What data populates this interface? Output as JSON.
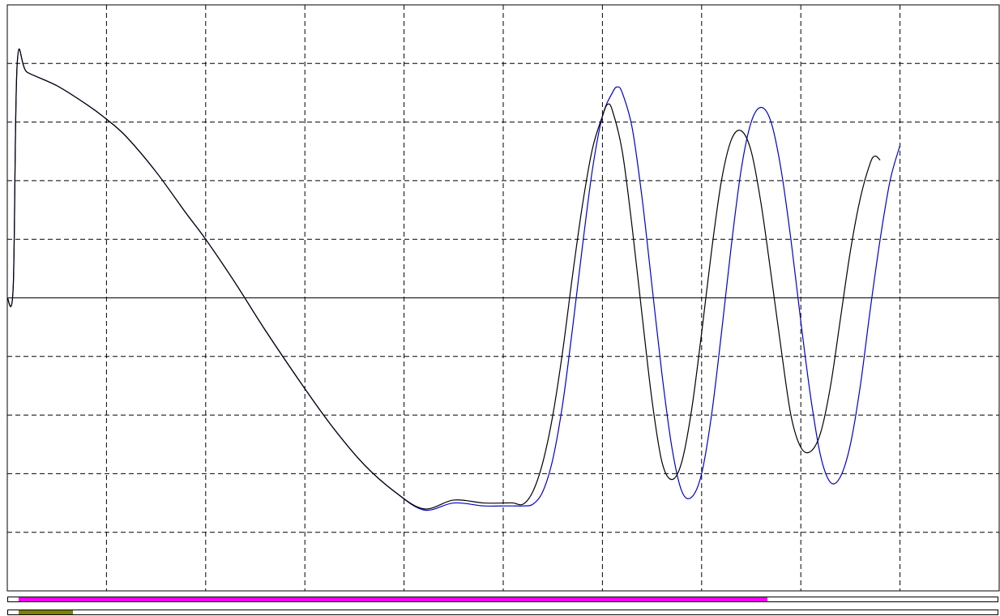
{
  "chart_data": {
    "type": "line",
    "grid": true,
    "grid_style": "dashed",
    "xlim": [
      0,
      10
    ],
    "ylim": [
      -5,
      5
    ],
    "zero_line": true,
    "x_divisions": 10,
    "y_divisions": 10,
    "series": [
      {
        "color": "#000000",
        "points": [
          [
            0,
            0
          ],
          [
            0.06,
            0.2
          ],
          [
            0.1,
            4.0
          ],
          [
            0.2,
            3.85
          ],
          [
            0.5,
            3.62
          ],
          [
            0.8,
            3.3
          ],
          [
            1.0,
            3.05
          ],
          [
            1.2,
            2.75
          ],
          [
            1.5,
            2.15
          ],
          [
            1.8,
            1.45
          ],
          [
            2.0,
            1.0
          ],
          [
            2.3,
            0.25
          ],
          [
            2.6,
            -0.55
          ],
          [
            3.0,
            -1.55
          ],
          [
            3.3,
            -2.25
          ],
          [
            3.6,
            -2.85
          ],
          [
            3.9,
            -3.3
          ],
          [
            4.2,
            -3.6
          ],
          [
            4.5,
            -3.45
          ],
          [
            4.8,
            -3.5
          ],
          [
            5.0,
            -3.5
          ],
          [
            5.1,
            -3.5
          ],
          [
            5.2,
            -3.52
          ],
          [
            5.3,
            -3.3
          ],
          [
            5.4,
            -2.8
          ],
          [
            5.5,
            -2.0
          ],
          [
            5.6,
            -0.9
          ],
          [
            5.7,
            0.4
          ],
          [
            5.8,
            1.6
          ],
          [
            5.9,
            2.55
          ],
          [
            6.0,
            3.1
          ],
          [
            6.05,
            3.3
          ],
          [
            6.1,
            3.2
          ],
          [
            6.2,
            2.5
          ],
          [
            6.3,
            1.2
          ],
          [
            6.4,
            -0.3
          ],
          [
            6.5,
            -1.75
          ],
          [
            6.6,
            -2.8
          ],
          [
            6.7,
            -3.1
          ],
          [
            6.8,
            -2.8
          ],
          [
            6.9,
            -1.9
          ],
          [
            7.0,
            -0.6
          ],
          [
            7.1,
            0.8
          ],
          [
            7.2,
            2.0
          ],
          [
            7.3,
            2.7
          ],
          [
            7.4,
            2.85
          ],
          [
            7.5,
            2.5
          ],
          [
            7.6,
            1.6
          ],
          [
            7.7,
            0.4
          ],
          [
            7.8,
            -0.85
          ],
          [
            7.9,
            -2.0
          ],
          [
            8.0,
            -2.55
          ],
          [
            8.1,
            -2.62
          ],
          [
            8.2,
            -2.3
          ],
          [
            8.3,
            -1.5
          ],
          [
            8.4,
            -0.35
          ],
          [
            8.5,
            0.8
          ],
          [
            8.6,
            1.7
          ],
          [
            8.7,
            2.3
          ],
          [
            8.75,
            2.42
          ],
          [
            8.8,
            2.35
          ]
        ]
      },
      {
        "color": "#0000cc",
        "points": [
          [
            0,
            0
          ],
          [
            0.06,
            0.2
          ],
          [
            0.1,
            4.0
          ],
          [
            0.2,
            3.85
          ],
          [
            0.5,
            3.62
          ],
          [
            0.8,
            3.3
          ],
          [
            1.0,
            3.05
          ],
          [
            1.2,
            2.75
          ],
          [
            1.5,
            2.15
          ],
          [
            1.8,
            1.45
          ],
          [
            2.0,
            1.0
          ],
          [
            2.3,
            0.25
          ],
          [
            2.6,
            -0.55
          ],
          [
            3.0,
            -1.55
          ],
          [
            3.3,
            -2.25
          ],
          [
            3.6,
            -2.85
          ],
          [
            3.9,
            -3.3
          ],
          [
            4.2,
            -3.62
          ],
          [
            4.5,
            -3.5
          ],
          [
            4.8,
            -3.55
          ],
          [
            5.0,
            -3.55
          ],
          [
            5.1,
            -3.55
          ],
          [
            5.2,
            -3.55
          ],
          [
            5.3,
            -3.52
          ],
          [
            5.4,
            -3.3
          ],
          [
            5.5,
            -2.75
          ],
          [
            5.6,
            -1.8
          ],
          [
            5.7,
            -0.5
          ],
          [
            5.8,
            0.9
          ],
          [
            5.9,
            2.2
          ],
          [
            6.0,
            3.1
          ],
          [
            6.1,
            3.5
          ],
          [
            6.15,
            3.6
          ],
          [
            6.2,
            3.5
          ],
          [
            6.3,
            2.9
          ],
          [
            6.4,
            1.7
          ],
          [
            6.5,
            0.2
          ],
          [
            6.6,
            -1.3
          ],
          [
            6.7,
            -2.55
          ],
          [
            6.8,
            -3.3
          ],
          [
            6.9,
            -3.4
          ],
          [
            7.0,
            -3.0
          ],
          [
            7.1,
            -2.0
          ],
          [
            7.2,
            -0.6
          ],
          [
            7.3,
            0.9
          ],
          [
            7.4,
            2.2
          ],
          [
            7.5,
            3.0
          ],
          [
            7.6,
            3.25
          ],
          [
            7.7,
            3.0
          ],
          [
            7.8,
            2.2
          ],
          [
            7.9,
            1.0
          ],
          [
            8.0,
            -0.4
          ],
          [
            8.1,
            -1.7
          ],
          [
            8.2,
            -2.7
          ],
          [
            8.3,
            -3.15
          ],
          [
            8.4,
            -3.05
          ],
          [
            8.5,
            -2.5
          ],
          [
            8.6,
            -1.5
          ],
          [
            8.7,
            -0.2
          ],
          [
            8.8,
            1.0
          ],
          [
            8.9,
            2.0
          ],
          [
            9.0,
            2.6
          ]
        ]
      }
    ]
  },
  "indicator_bars": [
    {
      "color": "#ff00ff",
      "fraction": 0.757
    },
    {
      "color": "#808000",
      "fraction": 0.055
    }
  ]
}
